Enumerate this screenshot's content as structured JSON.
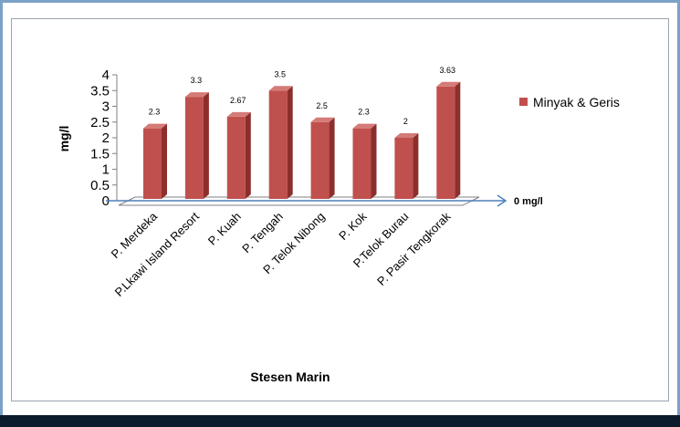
{
  "chart_data": {
    "type": "bar",
    "categories": [
      "P. Merdeka",
      "P.Lkawi Island Resort",
      "P. Kuah",
      "P. Tengah",
      "P. Telok Nibong",
      "P. Kok",
      "P.Telok Burau",
      "P. Pasir Tengkorak"
    ],
    "series": [
      {
        "name": "Minyak & Geris",
        "values": [
          2.3,
          3.3,
          2.67,
          3.5,
          2.5,
          2.3,
          2,
          3.63
        ],
        "color": "#c0504d"
      }
    ],
    "data_labels": [
      "2.3",
      "3.3",
      "2.67",
      "3.5",
      "2.5",
      "2.3",
      "2",
      "3.63"
    ],
    "ylabel": "mg/l",
    "xlabel": "Stesen Marin",
    "ylim": [
      0,
      4
    ],
    "yticks": [
      "0",
      "0.5",
      "1",
      "1.5",
      "2",
      "2.5",
      "3",
      "3.5",
      "4"
    ],
    "reference_line": {
      "label": "0 mg/l",
      "value": 0,
      "color": "#4f81bd"
    },
    "legend_position": "right",
    "grid": false
  }
}
